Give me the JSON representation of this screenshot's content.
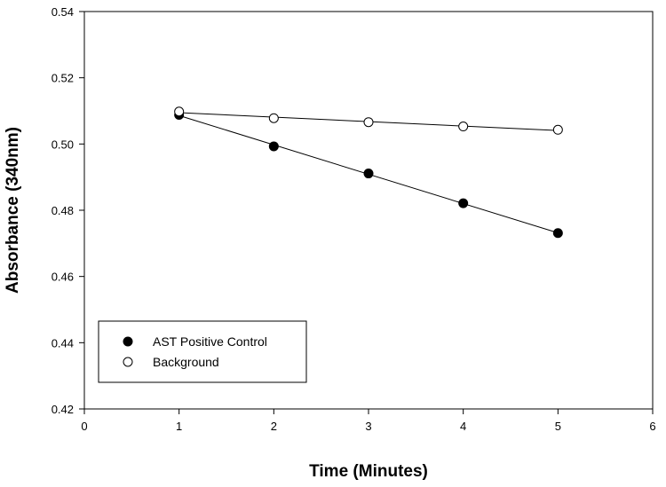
{
  "chart_data": {
    "type": "scatter",
    "title": "",
    "xlabel": "Time (Minutes)",
    "ylabel": "Absorbance (340nm)",
    "xlim": [
      0,
      6
    ],
    "ylim": [
      0.42,
      0.54
    ],
    "x_ticks": [
      0,
      1,
      2,
      3,
      4,
      5,
      6
    ],
    "y_ticks": [
      0.42,
      0.44,
      0.46,
      0.48,
      0.5,
      0.52,
      0.54
    ],
    "y_tick_labels": [
      "0.42",
      "0.44",
      "0.46",
      "0.48",
      "0.50",
      "0.52",
      "0.54"
    ],
    "grid": false,
    "legend_position": "bottom-left",
    "series": [
      {
        "name": "AST Positive Control",
        "marker": "filled-circle",
        "color": "#000000",
        "fit_line": true,
        "points": [
          {
            "x": 1,
            "y": 0.5088
          },
          {
            "x": 2,
            "y": 0.4993
          },
          {
            "x": 3,
            "y": 0.4911
          },
          {
            "x": 4,
            "y": 0.4821
          },
          {
            "x": 5,
            "y": 0.4731
          }
        ]
      },
      {
        "name": "Background",
        "marker": "open-circle",
        "color": "#000000",
        "fit_line": true,
        "points": [
          {
            "x": 1,
            "y": 0.5098
          },
          {
            "x": 2,
            "y": 0.5078
          },
          {
            "x": 3,
            "y": 0.5066
          },
          {
            "x": 4,
            "y": 0.5053
          },
          {
            "x": 5,
            "y": 0.5043
          }
        ]
      }
    ]
  }
}
